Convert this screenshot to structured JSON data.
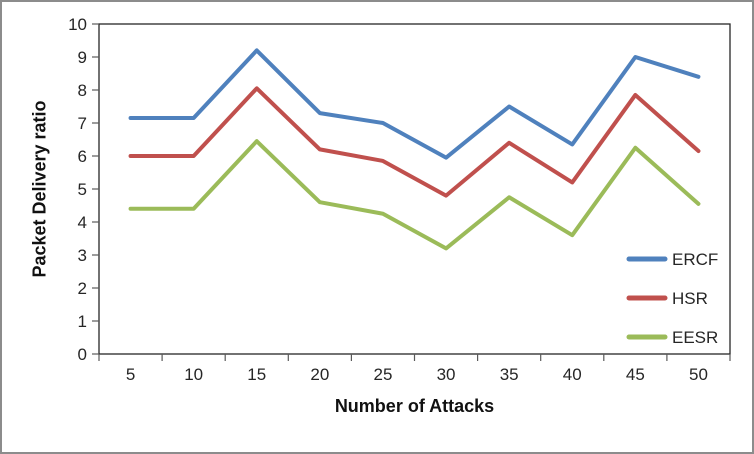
{
  "chart_data": {
    "type": "line",
    "title": "",
    "xlabel": "Number of Attacks",
    "ylabel": "Packet Delivery ratio",
    "categories": [
      5,
      10,
      15,
      20,
      25,
      30,
      35,
      40,
      45,
      50
    ],
    "series": [
      {
        "name": "ERCF",
        "color": "#4F81BD",
        "values": [
          7.15,
          7.15,
          9.2,
          7.3,
          7.0,
          5.95,
          7.5,
          6.35,
          9.0,
          8.4
        ]
      },
      {
        "name": "HSR",
        "color": "#C0504D",
        "values": [
          6.0,
          6.0,
          8.05,
          6.2,
          5.85,
          4.8,
          6.4,
          5.2,
          7.85,
          6.15
        ]
      },
      {
        "name": "EESR",
        "color": "#9BBB59",
        "values": [
          4.4,
          4.4,
          6.45,
          4.6,
          4.25,
          3.2,
          4.75,
          3.6,
          6.25,
          4.55
        ]
      }
    ],
    "ylim": [
      0,
      10
    ],
    "yticks": [
      0,
      1,
      2,
      3,
      4,
      5,
      6,
      7,
      8,
      9,
      10
    ],
    "grid": false,
    "legend_position": "inside-right",
    "axis_color": "#262626",
    "tick_color": "#595959",
    "background_color": "#ffffff",
    "frame_color": "#8c8c8c"
  }
}
